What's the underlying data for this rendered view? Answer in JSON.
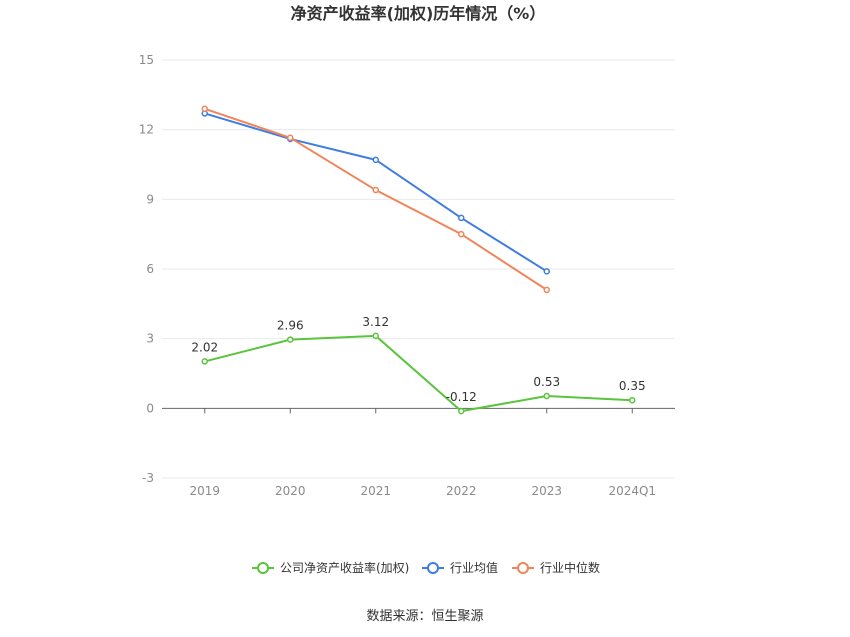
{
  "chart_data": {
    "type": "line",
    "title": "净资产收益率(加权)历年情况（%）",
    "categories": [
      "2019",
      "2020",
      "2021",
      "2022",
      "2023",
      "2024Q1"
    ],
    "ylim": [
      -3,
      15
    ],
    "yticks": [
      -3,
      0,
      3,
      6,
      9,
      12,
      15
    ],
    "grid": true,
    "legend_position": "bottom",
    "series": [
      {
        "name": "公司净资产收益率(加权)",
        "color": "#5ac43c",
        "labeled": true,
        "values": [
          2.02,
          2.96,
          3.12,
          -0.12,
          0.53,
          0.35
        ],
        "labels": [
          "2.02",
          "2.96",
          "3.12",
          "-0.12",
          "0.53",
          "0.35"
        ]
      },
      {
        "name": "行业均值",
        "color": "#3f7de0",
        "labeled": false,
        "values": [
          12.7,
          11.6,
          10.7,
          8.2,
          5.9,
          null
        ]
      },
      {
        "name": "行业中位数",
        "color": "#f0855a",
        "labeled": false,
        "values": [
          12.9,
          11.65,
          9.4,
          7.5,
          5.1,
          null
        ]
      }
    ],
    "source": "数据来源：恒生聚源"
  }
}
